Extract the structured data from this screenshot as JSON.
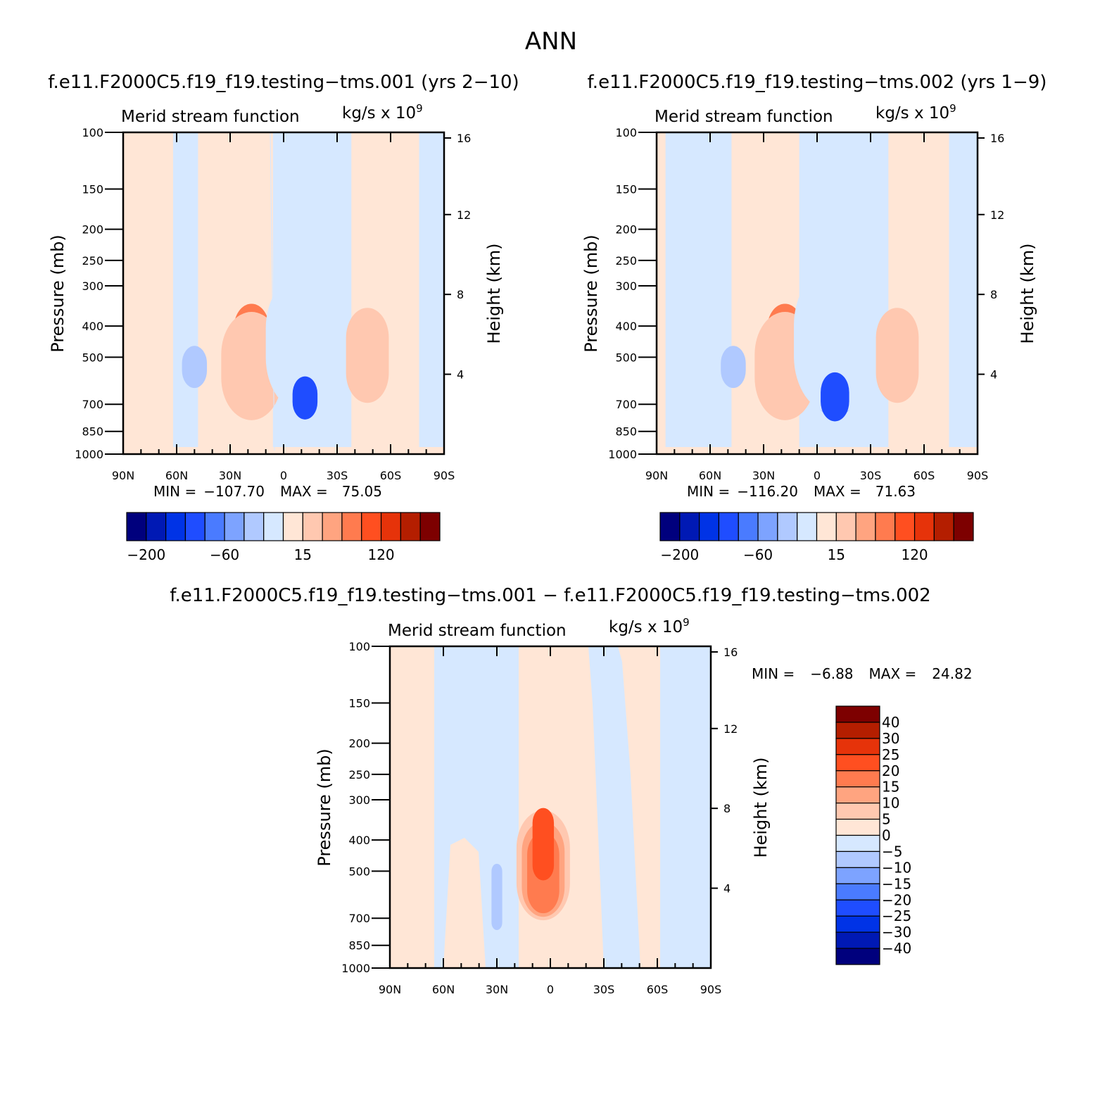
{
  "figure": {
    "title": "ANN",
    "test_case": "f.e11.F2000C5.f19_f19.testing−tms.001 (yrs 2−10)",
    "control_case": "f.e11.F2000C5.f19_f19.testing−tms.002 (yrs 1−9)",
    "diff_title": "f.e11.F2000C5.f19_f19.testing−tms.001 − f.e11.F2000C5.f19_f19.testing−tms.002"
  },
  "colors": {
    "main_levels": [
      "#00007d",
      "#0019b4",
      "#0033e6",
      "#1f4dff",
      "#4a7bff",
      "#7da3ff",
      "#b0c9ff",
      "#d6e8ff",
      "#ffe6d6",
      "#ffc8b0",
      "#ffa480",
      "#ff7b4f",
      "#ff4f20",
      "#e6330a",
      "#b41e00",
      "#7d0000"
    ],
    "diff_levels": [
      "#00007d",
      "#0019b4",
      "#0033e6",
      "#1f4dff",
      "#4a7bff",
      "#7da3ff",
      "#b0c9ff",
      "#d6e8ff",
      "#ffe6d6",
      "#ffc8b0",
      "#ffa480",
      "#ff7b4f",
      "#ff4f20",
      "#e6330a",
      "#b41e00",
      "#7d0000"
    ]
  },
  "chart_data": [
    {
      "type": "heatmap",
      "name": "test",
      "label_left": "Merid stream function",
      "label_right": "kg/s x 10",
      "label_right_exp": "9",
      "xlabel": "",
      "ylabel": "Pressure (mb)",
      "ylabel_right": "Height (km)",
      "x_ticks": [
        "90N",
        "60N",
        "30N",
        "0",
        "30S",
        "60S",
        "90S"
      ],
      "y_ticks": [
        100,
        150,
        200,
        250,
        300,
        400,
        500,
        700,
        850,
        1000
      ],
      "y_right_ticks": [
        16,
        12,
        8,
        4
      ],
      "ylim": [
        100,
        1000
      ],
      "xlim": [
        90,
        -90
      ],
      "min_label": "MIN =",
      "min": "−107.70",
      "max_label": "MAX =",
      "max": "75.05",
      "colorbar_labels": [
        "−200",
        "−60",
        "15",
        "120"
      ],
      "cells": [
        {
          "x": 50,
          "y": 560,
          "level": 6,
          "rx": 7,
          "ry": 180
        },
        {
          "x": 18,
          "y": 550,
          "level": 11,
          "rx": 10,
          "ry": 380
        },
        {
          "x": 18,
          "y": 600,
          "level": 10,
          "rx": 13,
          "ry": 420
        },
        {
          "x": 18,
          "y": 620,
          "level": 9,
          "rx": 17,
          "ry": 470
        },
        {
          "x": -12,
          "y": 620,
          "level": 4,
          "rx": 10,
          "ry": 350
        },
        {
          "x": -12,
          "y": 600,
          "level": 5,
          "rx": 14,
          "ry": 430
        },
        {
          "x": -12,
          "y": 580,
          "level": 6,
          "rx": 17,
          "ry": 470
        },
        {
          "x": -12,
          "y": 560,
          "level": 7,
          "rx": 22,
          "ry": 520
        },
        {
          "x": -12,
          "y": 700,
          "level": 3,
          "rx": 7,
          "ry": 230
        },
        {
          "x": -47,
          "y": 560,
          "level": 10,
          "rx": 7,
          "ry": 300
        },
        {
          "x": -47,
          "y": 560,
          "level": 9,
          "rx": 12,
          "ry": 380
        }
      ]
    },
    {
      "type": "heatmap",
      "name": "control",
      "label_left": "Merid stream function",
      "label_right": "kg/s x 10",
      "label_right_exp": "9",
      "xlabel": "",
      "ylabel": "Pressure (mb)",
      "ylabel_right": "Height (km)",
      "x_ticks": [
        "90N",
        "60N",
        "30N",
        "0",
        "30S",
        "60S",
        "90S"
      ],
      "y_ticks": [
        100,
        150,
        200,
        250,
        300,
        400,
        500,
        700,
        850,
        1000
      ],
      "y_right_ticks": [
        16,
        12,
        8,
        4
      ],
      "ylim": [
        100,
        1000
      ],
      "xlim": [
        90,
        -90
      ],
      "min_label": "MIN =",
      "min": "−116.20",
      "max_label": "MAX =",
      "max": "71.63",
      "colorbar_labels": [
        "−200",
        "−60",
        "15",
        "120"
      ],
      "cells": [
        {
          "x": 47,
          "y": 560,
          "level": 6,
          "rx": 7,
          "ry": 180
        },
        {
          "x": 18,
          "y": 550,
          "level": 11,
          "rx": 10,
          "ry": 380
        },
        {
          "x": 18,
          "y": 600,
          "level": 10,
          "rx": 13,
          "ry": 420
        },
        {
          "x": 18,
          "y": 620,
          "level": 9,
          "rx": 17,
          "ry": 470
        },
        {
          "x": -10,
          "y": 620,
          "level": 4,
          "rx": 10,
          "ry": 380
        },
        {
          "x": -10,
          "y": 600,
          "level": 5,
          "rx": 15,
          "ry": 460
        },
        {
          "x": -10,
          "y": 580,
          "level": 6,
          "rx": 18,
          "ry": 500
        },
        {
          "x": -10,
          "y": 560,
          "level": 7,
          "rx": 23,
          "ry": 540
        },
        {
          "x": -10,
          "y": 700,
          "level": 3,
          "rx": 8,
          "ry": 260
        },
        {
          "x": -45,
          "y": 560,
          "level": 10,
          "rx": 7,
          "ry": 300
        },
        {
          "x": -45,
          "y": 560,
          "level": 9,
          "rx": 12,
          "ry": 380
        }
      ]
    },
    {
      "type": "heatmap",
      "name": "difference",
      "label_left": "Merid stream function",
      "label_right": "kg/s x 10",
      "label_right_exp": "9",
      "xlabel": "",
      "ylabel": "Pressure (mb)",
      "ylabel_right": "Height (km)",
      "x_ticks": [
        "90N",
        "60N",
        "30N",
        "0",
        "30S",
        "60S",
        "90S"
      ],
      "y_ticks": [
        100,
        150,
        200,
        250,
        300,
        400,
        500,
        700,
        850,
        1000
      ],
      "y_right_ticks": [
        16,
        12,
        8,
        4
      ],
      "ylim": [
        100,
        1000
      ],
      "xlim": [
        90,
        -90
      ],
      "min_label": "MIN =",
      "min": "−6.88",
      "max_label": "MAX =",
      "max": "24.82",
      "colorbar_labels": [
        "40",
        "30",
        "25",
        "20",
        "15",
        "10",
        "5",
        "0",
        "−5",
        "−10",
        "−15",
        "−20",
        "−25",
        "−30",
        "−40"
      ],
      "cells": [
        {
          "x": 30,
          "y": 650,
          "level": 6,
          "rx": 3,
          "ry": 320
        },
        {
          "x": 4,
          "y": 560,
          "level": 9,
          "rx": 15,
          "ry": 430
        },
        {
          "x": 4,
          "y": 560,
          "level": 10,
          "rx": 12,
          "ry": 380
        },
        {
          "x": 4,
          "y": 560,
          "level": 11,
          "rx": 9,
          "ry": 330
        },
        {
          "x": 4,
          "y": 450,
          "level": 12,
          "rx": 6,
          "ry": 240
        }
      ]
    }
  ]
}
